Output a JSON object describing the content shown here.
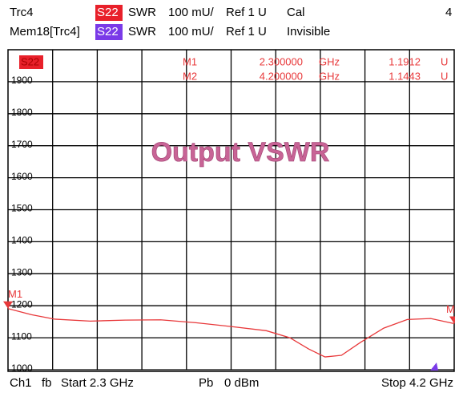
{
  "header": {
    "row1": {
      "trace": "Trc4",
      "param": "S22",
      "format": "SWR",
      "scale": "100 mU/",
      "ref": "Ref 1 U",
      "status": "Cal",
      "number": "4"
    },
    "row2": {
      "trace": "Mem18[Trc4]",
      "param": "S22",
      "format": "SWR",
      "scale": "100 mU/",
      "ref": "Ref 1 U",
      "status": "Invisible"
    }
  },
  "plot_badge": "S22",
  "markers": [
    {
      "name": "M1",
      "stimulus": "2.300000",
      "stimulus_unit": "GHz",
      "response": "1.1912",
      "response_unit": "U",
      "label": "M1"
    },
    {
      "name": "M2",
      "stimulus": "4.200000",
      "stimulus_unit": "GHz",
      "response": "1.1443",
      "response_unit": "U",
      "label": "M"
    }
  ],
  "footer": {
    "channel": "Ch1",
    "mode": "fb",
    "start": "Start 2.3 GHz",
    "power_label": "Pb",
    "power": "0 dBm",
    "stop": "Stop 4.2 GHz"
  },
  "chart_data": {
    "type": "line",
    "title": "Output VSWR",
    "x": [
      2.3,
      2.4,
      2.5,
      2.65,
      2.8,
      2.95,
      3.1,
      3.25,
      3.4,
      3.5,
      3.58,
      3.65,
      3.72,
      3.8,
      3.9,
      4.0,
      4.1,
      4.2
    ],
    "series": [
      {
        "name": "Trc4",
        "color": "#e8383a",
        "values": [
          1191,
          1172,
          1158,
          1152,
          1155,
          1156,
          1147,
          1135,
          1122,
          1100,
          1065,
          1040,
          1045,
          1085,
          1130,
          1157,
          1160,
          1144
        ]
      }
    ],
    "xlim": [
      2.3,
      4.2
    ],
    "xticks": [
      2.49,
      2.68,
      2.87,
      3.06,
      3.25,
      3.44,
      3.63,
      3.82,
      4.01
    ],
    "ylim": [
      1000,
      2000
    ],
    "yticks": [
      1000,
      1100,
      1200,
      1300,
      1400,
      1500,
      1600,
      1700,
      1800,
      1900
    ],
    "grid": true
  }
}
